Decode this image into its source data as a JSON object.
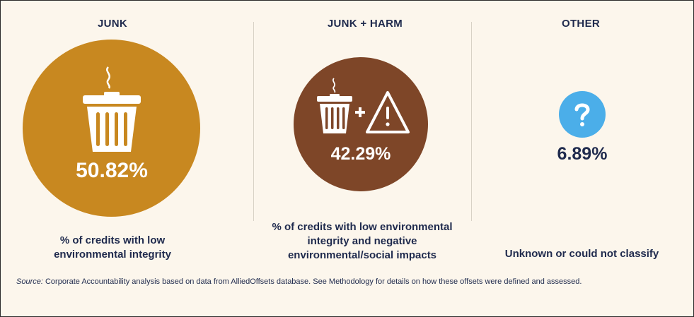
{
  "chart_data": {
    "type": "pie",
    "categories": [
      {
        "heading": "JUNK",
        "value": 50.82,
        "value_label": "50.82%",
        "caption_lines": [
          "% of credits with low",
          "environmental integrity"
        ],
        "color": "#c88820",
        "icon": "trash-can-icon"
      },
      {
        "heading": "JUNK + HARM",
        "value": 42.29,
        "value_label": "42.29%",
        "caption_lines": [
          "% of credits with low environmental",
          "integrity and negative",
          "environmental/social impacts"
        ],
        "color": "#7e4628",
        "icon": "trash-can-plus-warning-icon"
      },
      {
        "heading": "OTHER",
        "value": 6.89,
        "value_label": "6.89%",
        "caption_lines": [
          "Unknown or could not classify"
        ],
        "color": "#4baee9",
        "icon": "question-mark-icon"
      }
    ]
  },
  "source": {
    "label": "Source:",
    "text": " Corporate Accountability analysis based on data from AlliedOffsets database. See Methodology for details on how these offsets were defined and assessed."
  }
}
